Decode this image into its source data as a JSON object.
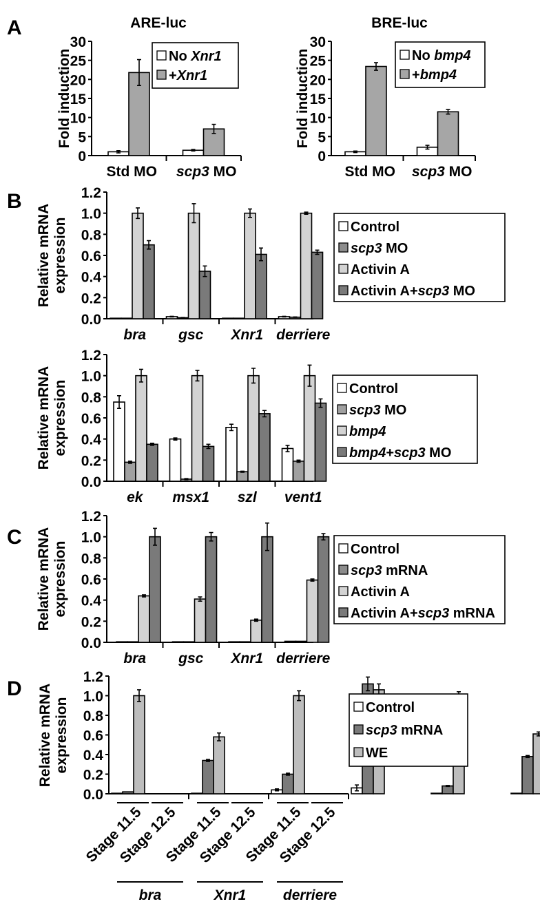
{
  "chart_data": [
    {
      "id": "A-left",
      "panel_letter": "A",
      "type": "bar",
      "title": "ARE-luc",
      "ylabel": "Fold induction",
      "xlabel": "",
      "ylim": [
        0,
        30
      ],
      "yticks": [
        "0",
        "5",
        "10",
        "15",
        "20",
        "25",
        "30"
      ],
      "ytick_values": [
        0,
        5,
        10,
        15,
        20,
        25,
        30
      ],
      "categories": [
        {
          "parts": [
            {
              "text": "Std MO",
              "italic": false
            }
          ]
        },
        {
          "parts": [
            {
              "text": "scp3",
              "italic": true
            },
            {
              "text": " MO",
              "italic": false
            }
          ]
        }
      ],
      "series": [
        {
          "name_parts": [
            {
              "text": "No ",
              "italic": false
            },
            {
              "text": "Xnr1",
              "italic": true
            }
          ],
          "color": "#ffffff",
          "values": [
            1.0,
            1.4
          ],
          "errors": [
            0.3,
            0.2
          ]
        },
        {
          "name_parts": [
            {
              "text": "+",
              "italic": false
            },
            {
              "text": "Xnr1",
              "italic": true
            }
          ],
          "color": "#a6a6a6",
          "values": [
            21.8,
            7.0
          ],
          "errors": [
            3.4,
            1.2
          ]
        }
      ],
      "legend_position": "top-right",
      "grid": false
    },
    {
      "id": "A-right",
      "panel_letter": "",
      "type": "bar",
      "title": "BRE-luc",
      "ylabel": "Fold induction",
      "xlabel": "",
      "ylim": [
        0,
        30
      ],
      "yticks": [
        "0",
        "5",
        "10",
        "15",
        "20",
        "25",
        "30"
      ],
      "ytick_values": [
        0,
        5,
        10,
        15,
        20,
        25,
        30
      ],
      "categories": [
        {
          "parts": [
            {
              "text": "Std MO",
              "italic": false
            }
          ]
        },
        {
          "parts": [
            {
              "text": "scp3",
              "italic": true
            },
            {
              "text": " MO",
              "italic": false
            }
          ]
        }
      ],
      "series": [
        {
          "name_parts": [
            {
              "text": "No ",
              "italic": false
            },
            {
              "text": "bmp4",
              "italic": true
            }
          ],
          "color": "#ffffff",
          "values": [
            1.0,
            2.2
          ],
          "errors": [
            0.2,
            0.5
          ]
        },
        {
          "name_parts": [
            {
              "text": "+",
              "italic": false
            },
            {
              "text": "bmp4",
              "italic": true
            }
          ],
          "color": "#a6a6a6",
          "values": [
            23.4,
            11.5
          ],
          "errors": [
            1.0,
            0.6
          ]
        }
      ],
      "legend_position": "top-right",
      "grid": false
    },
    {
      "id": "B-top",
      "panel_letter": "B",
      "type": "bar",
      "title": "",
      "ylabel": "Relative mRNA expression",
      "ylabel_lines": [
        "Relative mRNA",
        "expression"
      ],
      "xlabel": "",
      "ylim": [
        0,
        1.2
      ],
      "yticks": [
        "0.0",
        "0.2",
        "0.4",
        "0.6",
        "0.8",
        "1.0",
        "1.2"
      ],
      "ytick_values": [
        0,
        0.2,
        0.4,
        0.6,
        0.8,
        1.0,
        1.2
      ],
      "categories": [
        {
          "parts": [
            {
              "text": "bra",
              "italic": true
            }
          ]
        },
        {
          "parts": [
            {
              "text": "gsc",
              "italic": true
            }
          ]
        },
        {
          "parts": [
            {
              "text": "Xnr1",
              "italic": true
            }
          ]
        },
        {
          "parts": [
            {
              "text": "derriere",
              "italic": true
            }
          ]
        }
      ],
      "series": [
        {
          "name_parts": [
            {
              "text": "Control",
              "italic": false
            }
          ],
          "color": "#ffffff",
          "values": [
            0.003,
            0.02,
            0.002,
            0.02
          ],
          "errors": [
            0,
            0.003,
            0,
            0.003
          ]
        },
        {
          "name_parts": [
            {
              "text": "scp3",
              "italic": true
            },
            {
              "text": " MO",
              "italic": false
            }
          ],
          "color": "#8c8c8c",
          "values": [
            0.003,
            0.01,
            0.002,
            0.015
          ],
          "errors": [
            0,
            0.002,
            0,
            0.002
          ]
        },
        {
          "name_parts": [
            {
              "text": "Activin A",
              "italic": false
            }
          ],
          "color": "#d3d3d3",
          "values": [
            1.0,
            1.0,
            1.0,
            1.0
          ],
          "errors": [
            0.05,
            0.09,
            0.04,
            0.01
          ]
        },
        {
          "name_parts": [
            {
              "text": "Activin A+",
              "italic": false
            },
            {
              "text": "scp3",
              "italic": true
            },
            {
              "text": " MO",
              "italic": false
            }
          ],
          "color": "#7a7a7a",
          "values": [
            0.7,
            0.45,
            0.61,
            0.63
          ],
          "errors": [
            0.04,
            0.05,
            0.06,
            0.02
          ]
        }
      ],
      "legend_position": "right",
      "grid": false
    },
    {
      "id": "B-bottom",
      "panel_letter": "",
      "type": "bar",
      "title": "",
      "ylabel": "Relative mRNA expression",
      "ylabel_lines": [
        "Relative mRNA",
        "expression"
      ],
      "xlabel": "",
      "ylim": [
        0,
        1.2
      ],
      "yticks": [
        "0.0",
        "0.2",
        "0.4",
        "0.6",
        "0.8",
        "1.0",
        "1.2"
      ],
      "ytick_values": [
        0,
        0.2,
        0.4,
        0.6,
        0.8,
        1.0,
        1.2
      ],
      "categories": [
        {
          "parts": [
            {
              "text": "ek",
              "italic": true
            }
          ]
        },
        {
          "parts": [
            {
              "text": "msx1",
              "italic": true
            }
          ]
        },
        {
          "parts": [
            {
              "text": "szl",
              "italic": true
            }
          ]
        },
        {
          "parts": [
            {
              "text": "vent1",
              "italic": true
            }
          ]
        }
      ],
      "series": [
        {
          "name_parts": [
            {
              "text": "Control",
              "italic": false
            }
          ],
          "color": "#ffffff",
          "values": [
            0.75,
            0.4,
            0.51,
            0.31
          ],
          "errors": [
            0.06,
            0.01,
            0.03,
            0.03
          ]
        },
        {
          "name_parts": [
            {
              "text": "scp3",
              "italic": true
            },
            {
              "text": " MO",
              "italic": false
            }
          ],
          "color": "#a0a0a0",
          "values": [
            0.18,
            0.02,
            0.09,
            0.19
          ],
          "errors": [
            0.01,
            0.005,
            0.005,
            0.01
          ]
        },
        {
          "name_parts": [
            {
              "text": "bmp4",
              "italic": true
            }
          ],
          "color": "#d3d3d3",
          "values": [
            1.0,
            1.0,
            1.0,
            1.0
          ],
          "errors": [
            0.06,
            0.05,
            0.07,
            0.1
          ]
        },
        {
          "name_parts": [
            {
              "text": "bmp4",
              "italic": true
            },
            {
              "text": "+",
              "italic": false
            },
            {
              "text": "scp3",
              "italic": true
            },
            {
              "text": " MO",
              "italic": false
            }
          ],
          "color": "#7a7a7a",
          "values": [
            0.35,
            0.33,
            0.64,
            0.74
          ],
          "errors": [
            0.01,
            0.02,
            0.03,
            0.04
          ]
        }
      ],
      "legend_position": "right",
      "grid": false
    },
    {
      "id": "C",
      "panel_letter": "C",
      "type": "bar",
      "title": "",
      "ylabel": "Relative mRNA expression",
      "ylabel_lines": [
        "Relative mRNA",
        "expression"
      ],
      "xlabel": "",
      "ylim": [
        0,
        1.2
      ],
      "yticks": [
        "0.0",
        "0.2",
        "0.4",
        "0.6",
        "0.8",
        "1.0",
        "1.2"
      ],
      "ytick_values": [
        0,
        0.2,
        0.4,
        0.6,
        0.8,
        1.0,
        1.2
      ],
      "categories": [
        {
          "parts": [
            {
              "text": "bra",
              "italic": true
            }
          ]
        },
        {
          "parts": [
            {
              "text": "gsc",
              "italic": true
            }
          ]
        },
        {
          "parts": [
            {
              "text": "Xnr1",
              "italic": true
            }
          ]
        },
        {
          "parts": [
            {
              "text": "derriere",
              "italic": true
            }
          ]
        }
      ],
      "series": [
        {
          "name_parts": [
            {
              "text": "Control",
              "italic": false
            }
          ],
          "color": "#ffffff",
          "values": [
            0.002,
            0.005,
            0.005,
            0.01
          ],
          "errors": [
            0,
            0,
            0,
            0
          ]
        },
        {
          "name_parts": [
            {
              "text": "scp3",
              "italic": true
            },
            {
              "text": " mRNA",
              "italic": false
            }
          ],
          "color": "#8c8c8c",
          "values": [
            0.002,
            0.005,
            0.003,
            0.01
          ],
          "errors": [
            0,
            0,
            0,
            0
          ]
        },
        {
          "name_parts": [
            {
              "text": "Activin A",
              "italic": false
            }
          ],
          "color": "#d3d3d3",
          "values": [
            0.44,
            0.41,
            0.21,
            0.59
          ],
          "errors": [
            0.01,
            0.02,
            0.01,
            0.01
          ]
        },
        {
          "name_parts": [
            {
              "text": "Activin A+",
              "italic": false
            },
            {
              "text": "scp3",
              "italic": true
            },
            {
              "text": " mRNA",
              "italic": false
            }
          ],
          "color": "#7a7a7a",
          "values": [
            1.0,
            1.0,
            1.0,
            1.0
          ],
          "errors": [
            0.08,
            0.04,
            0.13,
            0.03
          ]
        }
      ],
      "legend_position": "right",
      "grid": false
    },
    {
      "id": "D",
      "panel_letter": "D",
      "type": "bar",
      "title": "",
      "ylabel": "Relative mRNA expression",
      "ylabel_lines": [
        "Relative mRNA",
        "expression"
      ],
      "xlabel": "",
      "ylim": [
        0,
        1.2
      ],
      "yticks": [
        "0.0",
        "0.2",
        "0.4",
        "0.6",
        "0.8",
        "1.0",
        "1.2"
      ],
      "ytick_values": [
        0,
        0.2,
        0.4,
        0.6,
        0.8,
        1.0,
        1.2
      ],
      "categories": [
        {
          "gene": "bra",
          "stage": "Stage 11.5"
        },
        {
          "gene": "bra",
          "stage": "Stage 12.5"
        },
        {
          "gene": "Xnr1",
          "stage": "Stage 11.5"
        },
        {
          "gene": "Xnr1",
          "stage": "Stage 12.5"
        },
        {
          "gene": "derriere",
          "stage": "Stage 11.5"
        },
        {
          "gene": "derriere",
          "stage": "Stage 12.5"
        }
      ],
      "gene_groups": [
        "bra",
        "Xnr1",
        "derriere"
      ],
      "series": [
        {
          "name_parts": [
            {
              "text": "Control",
              "italic": false
            }
          ],
          "color": "#ffffff",
          "values": [
            0.0,
            0.0,
            0.04,
            0.06,
            0.002,
            0.002
          ],
          "errors": [
            0,
            0,
            0.01,
            0.03,
            0,
            0
          ]
        },
        {
          "name_parts": [
            {
              "text": "scp3",
              "italic": true
            },
            {
              "text": " mRNA",
              "italic": false
            }
          ],
          "color": "#7a7a7a",
          "values": [
            0.02,
            0.34,
            0.2,
            1.12,
            0.08,
            0.38
          ],
          "errors": [
            0,
            0.01,
            0.01,
            0.07,
            0.005,
            0.01
          ]
        },
        {
          "name_parts": [
            {
              "text": "WE",
              "italic": false
            }
          ],
          "color": "#bdbdbd",
          "values": [
            1.0,
            0.58,
            1.0,
            1.06,
            1.0,
            0.61
          ],
          "errors": [
            0.06,
            0.04,
            0.05,
            0.06,
            0.04,
            0.02
          ]
        }
      ],
      "legend_position": "right",
      "grid": false
    }
  ]
}
